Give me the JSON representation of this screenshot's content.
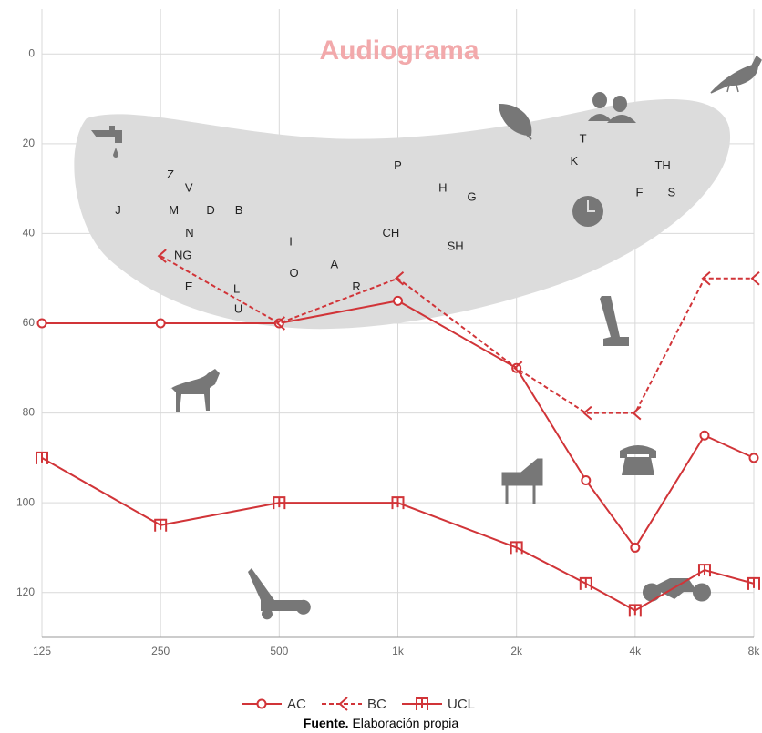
{
  "chart_data": {
    "type": "line",
    "title": "Audiograma",
    "xscale": "log",
    "xlim": [
      125,
      8000
    ],
    "xticks": [
      125,
      250,
      500,
      {
        "value": 1000,
        "label": "1k"
      },
      {
        "value": 2000,
        "label": "2k"
      },
      {
        "value": 4000,
        "label": "4k"
      },
      {
        "value": 8000,
        "label": "8k"
      }
    ],
    "ylim": [
      -10,
      130
    ],
    "yinverted": true,
    "yticks": [
      0,
      20,
      40,
      60,
      80,
      100,
      120
    ],
    "grid": true,
    "series": [
      {
        "name": "AC",
        "color": "#d13438",
        "marker": "circle",
        "dashed": false,
        "x": [
          125,
          250,
          500,
          1000,
          2000,
          3000,
          4000,
          6000,
          8000
        ],
        "values": [
          60,
          60,
          60,
          55,
          70,
          95,
          110,
          85,
          90
        ]
      },
      {
        "name": "BC",
        "color": "#d13438",
        "marker": "arrow",
        "dashed": true,
        "x": [
          250,
          500,
          1000,
          2000,
          3000,
          4000,
          6000,
          8000
        ],
        "values": [
          45,
          60,
          50,
          70,
          80,
          80,
          50,
          50
        ]
      },
      {
        "name": "UCL",
        "color": "#d13438",
        "marker": "m",
        "dashed": false,
        "x": [
          125,
          250,
          500,
          1000,
          2000,
          3000,
          4000,
          6000,
          8000
        ],
        "values": [
          90,
          105,
          100,
          100,
          110,
          118,
          124,
          115,
          118
        ]
      }
    ],
    "annotations": [
      {
        "text": "J",
        "x": 195,
        "y": 35
      },
      {
        "text": "Z",
        "x": 265,
        "y": 27
      },
      {
        "text": "V",
        "x": 295,
        "y": 30
      },
      {
        "text": "M",
        "x": 270,
        "y": 35
      },
      {
        "text": "D",
        "x": 335,
        "y": 35
      },
      {
        "text": "B",
        "x": 395,
        "y": 35
      },
      {
        "text": "N",
        "x": 296,
        "y": 40
      },
      {
        "text": "NG",
        "x": 285,
        "y": 45
      },
      {
        "text": "E",
        "x": 295,
        "y": 52
      },
      {
        "text": "L",
        "x": 390,
        "y": 52.5
      },
      {
        "text": "U",
        "x": 394,
        "y": 57
      },
      {
        "text": "I",
        "x": 535,
        "y": 42
      },
      {
        "text": "O",
        "x": 545,
        "y": 49
      },
      {
        "text": "A",
        "x": 690,
        "y": 47
      },
      {
        "text": "R",
        "x": 785,
        "y": 52
      },
      {
        "text": "P",
        "x": 1000,
        "y": 25
      },
      {
        "text": "CH",
        "x": 960,
        "y": 40
      },
      {
        "text": "H",
        "x": 1300,
        "y": 30
      },
      {
        "text": "G",
        "x": 1540,
        "y": 32
      },
      {
        "text": "SH",
        "x": 1400,
        "y": 43
      },
      {
        "text": "T",
        "x": 2950,
        "y": 19
      },
      {
        "text": "K",
        "x": 2800,
        "y": 24
      },
      {
        "text": "TH",
        "x": 4700,
        "y": 25
      },
      {
        "text": "F",
        "x": 4100,
        "y": 31
      },
      {
        "text": "S",
        "x": 4950,
        "y": 31
      }
    ]
  },
  "caption": {
    "label": "Fuente.",
    "text": "Elaboración propia"
  }
}
